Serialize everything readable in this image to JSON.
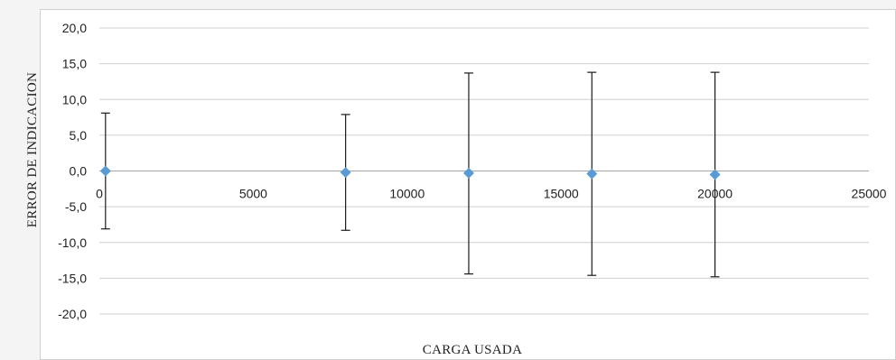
{
  "chart_data": {
    "type": "scatter",
    "title": "",
    "xlabel": "CARGA USADA",
    "ylabel": "ERROR DE INDICACION",
    "xlim": [
      0,
      25000
    ],
    "ylim": [
      -20,
      20
    ],
    "x_ticks": [
      "0",
      "5000",
      "10000",
      "15000",
      "20000",
      "25000"
    ],
    "y_ticks": [
      "20,0",
      "15,0",
      "10,0",
      "5,0",
      "0,0",
      "-5,0",
      "-10,0",
      "-15,0",
      "-20,0"
    ],
    "grid": "horizontal",
    "series": [
      {
        "x": [
          200,
          8000,
          12000,
          16000,
          20000
        ],
        "y": [
          0.0,
          -0.2,
          -0.3,
          -0.4,
          -0.5
        ],
        "error_plus": [
          8.1,
          8.1,
          14.0,
          14.2,
          14.3
        ],
        "error_minus": [
          8.1,
          8.1,
          14.1,
          14.2,
          14.3
        ],
        "color": "#5b9bd5",
        "marker": "diamond"
      }
    ]
  }
}
